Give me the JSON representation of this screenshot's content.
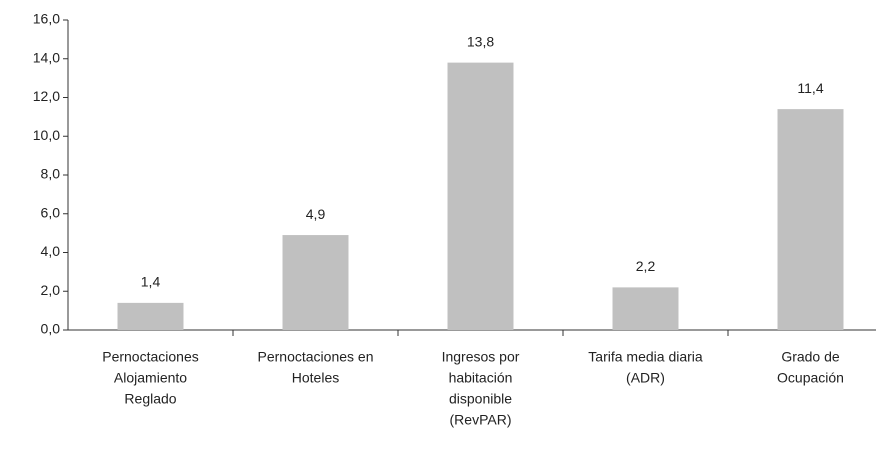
{
  "chart_data": {
    "type": "bar",
    "categories": [
      [
        "Pernoctaciones",
        "Alojamiento",
        "Reglado"
      ],
      [
        "Pernoctaciones en",
        "Hoteles"
      ],
      [
        "Ingresos por",
        "habitación",
        "disponible",
        "(RevPAR)"
      ],
      [
        "Tarifa media diaria",
        "(ADR)"
      ],
      [
        "Grado de",
        "Ocupación"
      ]
    ],
    "values": [
      1.4,
      4.9,
      13.8,
      2.2,
      11.4
    ],
    "value_labels": [
      "1,4",
      "4,9",
      "13,8",
      "2,2",
      "11,4"
    ],
    "color": "#c0c0c0",
    "ylim": [
      0,
      16
    ],
    "yticks": [
      {
        "value": 0,
        "label": "0,0"
      },
      {
        "value": 2,
        "label": "2,0"
      },
      {
        "value": 4,
        "label": "4,0"
      },
      {
        "value": 6,
        "label": "6,0"
      },
      {
        "value": 8,
        "label": "8,0"
      },
      {
        "value": 10,
        "label": "10,0"
      },
      {
        "value": 12,
        "label": "12,0"
      },
      {
        "value": 14,
        "label": "14,0"
      },
      {
        "value": 16,
        "label": "16,0"
      }
    ],
    "grid": false
  }
}
